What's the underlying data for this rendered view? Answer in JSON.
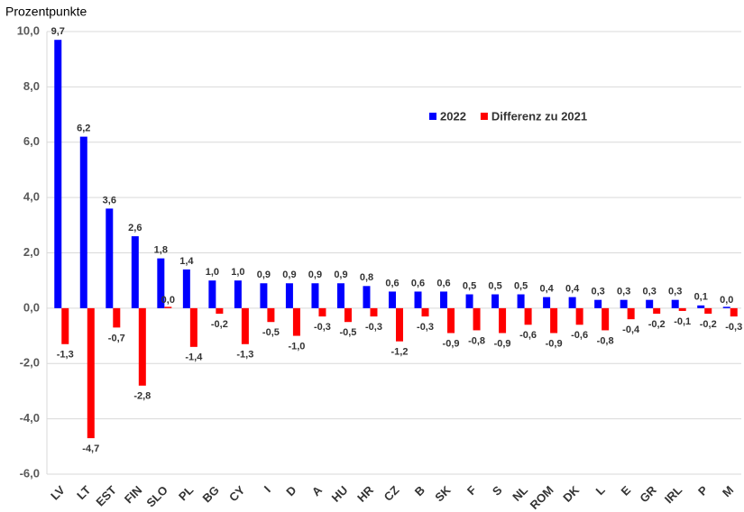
{
  "chart_data": {
    "type": "bar",
    "y_axis_label": "Prozentpunkte",
    "categories": [
      "LV",
      "LT",
      "EST",
      "FIN",
      "SLO",
      "PL",
      "BG",
      "CY",
      "I",
      "D",
      "A",
      "HU",
      "HR",
      "CZ",
      "B",
      "SK",
      "F",
      "S",
      "NL",
      "ROM",
      "DK",
      "L",
      "E",
      "GR",
      "IRL",
      "P",
      "M"
    ],
    "series": [
      {
        "name": "2022",
        "color": "#0000ff",
        "values": [
          9.7,
          6.2,
          3.6,
          2.6,
          1.8,
          1.4,
          1.0,
          1.0,
          0.9,
          0.9,
          0.9,
          0.9,
          0.8,
          0.6,
          0.6,
          0.6,
          0.5,
          0.5,
          0.5,
          0.4,
          0.4,
          0.3,
          0.3,
          0.3,
          0.3,
          0.1,
          0.0
        ],
        "value_labels": [
          "9,7",
          "6,2",
          "3,6",
          "2,6",
          "1,8",
          "1,4",
          "1,0",
          "1,0",
          "0,9",
          "0,9",
          "0,9",
          "0,9",
          "0,8",
          "0,6",
          "0,6",
          "0,6",
          "0,5",
          "0,5",
          "0,5",
          "0,4",
          "0,4",
          "0,3",
          "0,3",
          "0,3",
          "0,3",
          "0,1",
          "0,0"
        ]
      },
      {
        "name": "Differenz zu 2021",
        "color": "#ff0000",
        "values": [
          -1.3,
          -4.7,
          -0.7,
          -2.8,
          0.0,
          -1.4,
          -0.2,
          -1.3,
          -0.5,
          -1.0,
          -0.3,
          -0.5,
          -0.3,
          -1.2,
          -0.3,
          -0.9,
          -0.8,
          -0.9,
          -0.6,
          -0.9,
          -0.6,
          -0.8,
          -0.4,
          -0.2,
          -0.1,
          -0.2,
          -0.3
        ],
        "value_labels": [
          "-1,3",
          "-4,7",
          "-0,7",
          "-2,8",
          "0,0",
          "-1,4",
          "-0,2",
          "-1,3",
          "-0,5",
          "-1,0",
          "-0,3",
          "-0,5",
          "-0,3",
          "-1,2",
          "-0,3",
          "-0,9",
          "-0,8",
          "-0,9",
          "-0,6",
          "-0,9",
          "-0,6",
          "-0,8",
          "-0,4",
          "-0,2",
          "-0,1",
          "-0,2",
          "-0,3"
        ]
      }
    ],
    "ylim": [
      -6,
      10
    ],
    "yticks": [
      {
        "value": -6,
        "label": "-6,0"
      },
      {
        "value": -4,
        "label": "-4,0"
      },
      {
        "value": -2,
        "label": "-2,0"
      },
      {
        "value": 0,
        "label": "0,0"
      },
      {
        "value": 2,
        "label": "2,0"
      },
      {
        "value": 4,
        "label": "4,0"
      },
      {
        "value": 6,
        "label": "6,0"
      },
      {
        "value": 8,
        "label": "8,0"
      },
      {
        "value": 10,
        "label": "10,0"
      }
    ],
    "grid": true
  }
}
